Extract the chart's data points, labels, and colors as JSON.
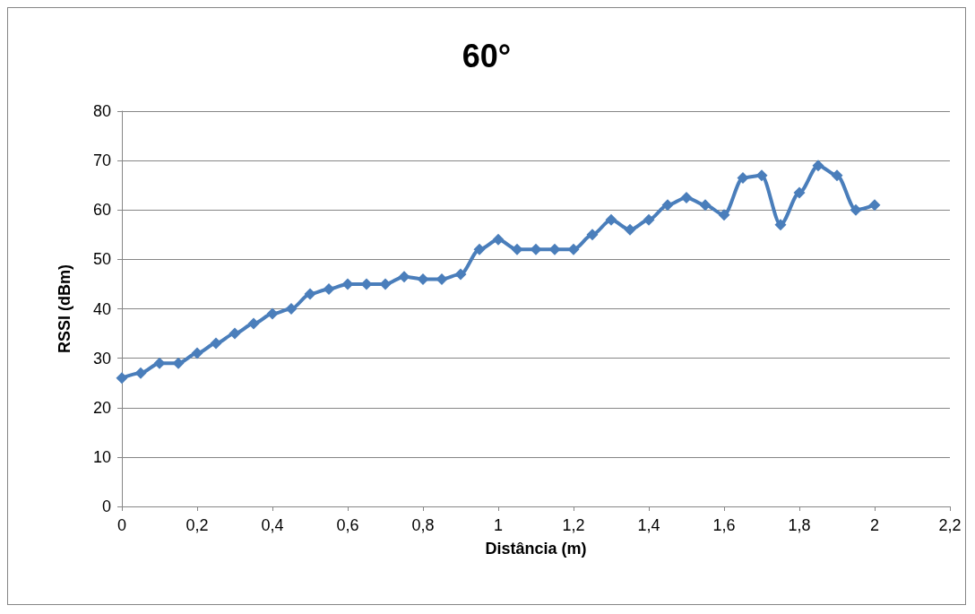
{
  "chart_data": {
    "type": "line",
    "title": "60°",
    "xlabel": "Distância (m)",
    "ylabel": "RSSI (dBm)",
    "x": [
      0,
      0.05,
      0.1,
      0.15,
      0.2,
      0.25,
      0.3,
      0.35,
      0.4,
      0.45,
      0.5,
      0.55,
      0.6,
      0.65,
      0.7,
      0.75,
      0.8,
      0.85,
      0.9,
      0.95,
      1,
      1.05,
      1.1,
      1.15,
      1.2,
      1.25,
      1.3,
      1.35,
      1.4,
      1.45,
      1.5,
      1.55,
      1.6,
      1.65,
      1.7,
      1.75,
      1.8,
      1.85,
      1.9,
      1.95,
      2
    ],
    "series": [
      {
        "color": "#4a7ebb",
        "values": [
          26,
          27,
          29,
          29,
          31,
          33,
          35,
          37,
          39,
          40,
          43,
          44,
          45,
          45,
          45,
          46.5,
          46,
          46,
          47,
          52,
          54,
          52,
          52,
          52,
          52,
          55,
          58,
          56,
          58,
          61,
          62.5,
          61,
          59,
          66.5,
          67,
          57,
          63.5,
          69,
          67,
          60,
          61
        ]
      }
    ],
    "xlim": [
      0,
      2.2
    ],
    "xticks": [
      0,
      {
        "value": 0.2,
        "label": "0,2"
      },
      {
        "value": 0.4,
        "label": "0,4"
      },
      {
        "value": 0.6,
        "label": "0,6"
      },
      {
        "value": 0.8,
        "label": "0,8"
      },
      1,
      {
        "value": 1.2,
        "label": "1,2"
      },
      {
        "value": 1.4,
        "label": "1,4"
      },
      {
        "value": 1.6,
        "label": "1,6"
      },
      {
        "value": 1.8,
        "label": "1,8"
      },
      2,
      {
        "value": 2.2,
        "label": "2,2"
      }
    ],
    "ylim": [
      0,
      80
    ],
    "yticks": [
      0,
      10,
      20,
      30,
      40,
      50,
      60,
      70,
      80
    ],
    "grid": "y",
    "marker": "diamond",
    "line_style": "solid"
  }
}
